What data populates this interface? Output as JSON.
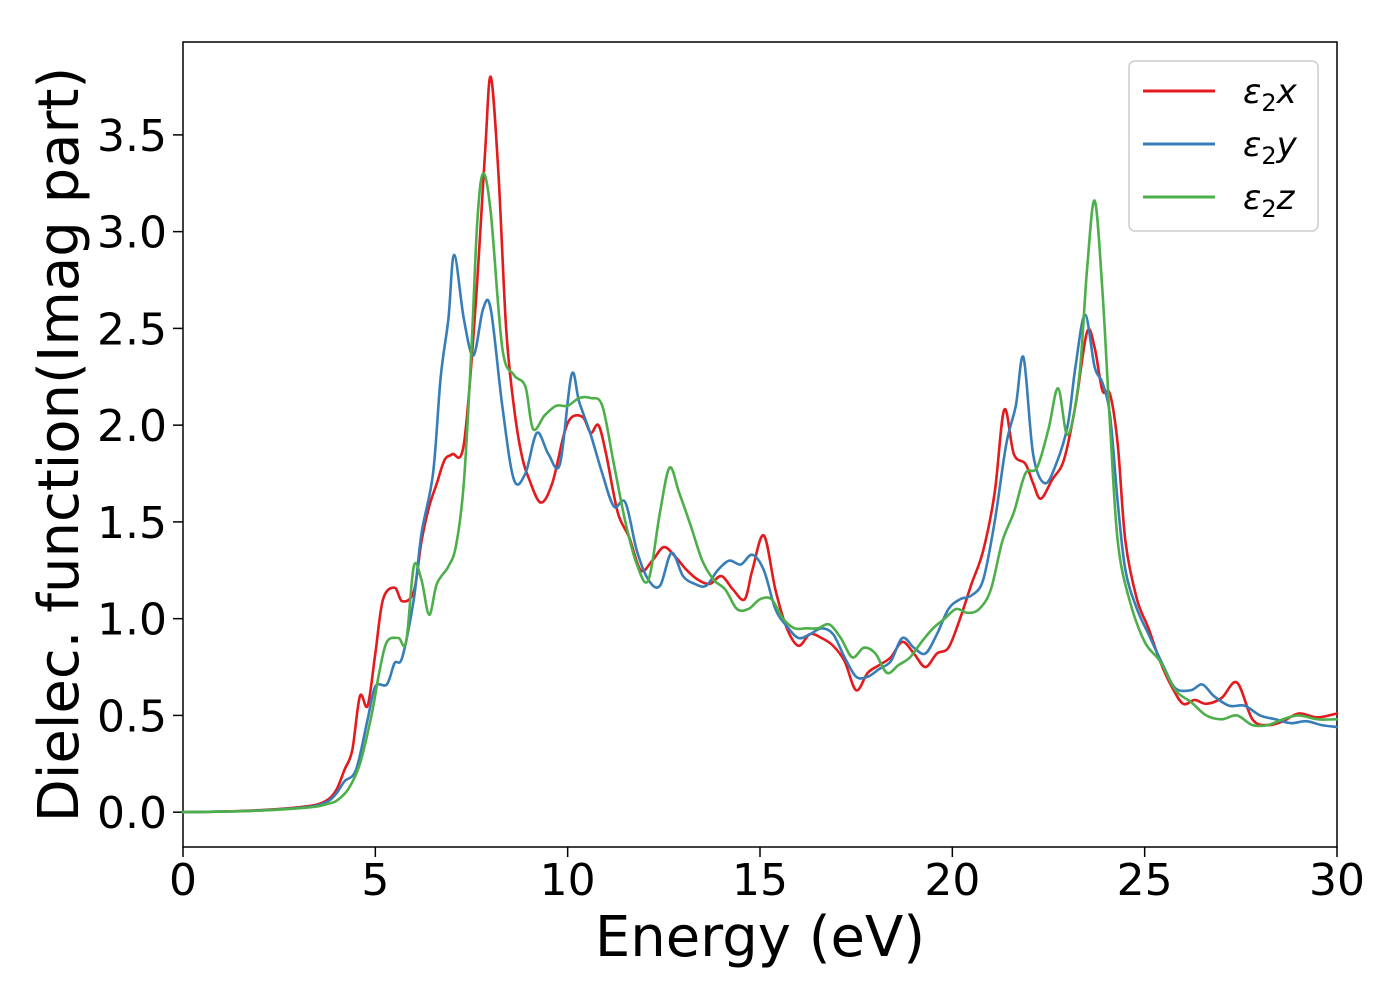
{
  "chart_data": {
    "type": "line",
    "title": "",
    "xlabel": "Energy (eV)",
    "ylabel": "Dielec. function(Imag part)",
    "xlim": [
      0,
      30
    ],
    "ylim": [
      -0.18,
      3.98
    ],
    "x_ticks": [
      0,
      5,
      10,
      15,
      20,
      25,
      30
    ],
    "y_ticks": [
      0.0,
      0.5,
      1.0,
      1.5,
      2.0,
      2.5,
      3.0,
      3.5
    ],
    "x_tick_labels": [
      "0",
      "5",
      "10",
      "15",
      "20",
      "25",
      "30"
    ],
    "y_tick_labels": [
      "0.0",
      "0.5",
      "1.0",
      "1.5",
      "2.0",
      "2.5",
      "3.0",
      "3.5"
    ],
    "grid": false,
    "legend_position": "upper right",
    "series": [
      {
        "name": "ε₂x",
        "name_main": "ε",
        "name_sub": "2",
        "name_var": "x",
        "color": "#e41a1c",
        "points": [
          [
            0,
            0.0
          ],
          [
            1,
            0.003
          ],
          [
            2,
            0.01
          ],
          [
            3,
            0.025
          ],
          [
            3.5,
            0.04
          ],
          [
            3.8,
            0.07
          ],
          [
            4.0,
            0.12
          ],
          [
            4.2,
            0.22
          ],
          [
            4.4,
            0.32
          ],
          [
            4.6,
            0.6
          ],
          [
            4.8,
            0.55
          ],
          [
            5.0,
            0.82
          ],
          [
            5.2,
            1.1
          ],
          [
            5.5,
            1.16
          ],
          [
            5.7,
            1.09
          ],
          [
            6.0,
            1.14
          ],
          [
            6.2,
            1.4
          ],
          [
            6.4,
            1.58
          ],
          [
            6.6,
            1.7
          ],
          [
            6.8,
            1.82
          ],
          [
            7.0,
            1.85
          ],
          [
            7.3,
            1.9
          ],
          [
            7.6,
            2.6
          ],
          [
            7.85,
            3.4
          ],
          [
            8.0,
            3.8
          ],
          [
            8.2,
            3.3
          ],
          [
            8.4,
            2.5
          ],
          [
            8.6,
            2.1
          ],
          [
            8.8,
            1.85
          ],
          [
            9.0,
            1.72
          ],
          [
            9.3,
            1.6
          ],
          [
            9.6,
            1.7
          ],
          [
            9.9,
            1.95
          ],
          [
            10.1,
            2.04
          ],
          [
            10.4,
            2.04
          ],
          [
            10.6,
            1.96
          ],
          [
            10.8,
            2.0
          ],
          [
            11.0,
            1.85
          ],
          [
            11.3,
            1.55
          ],
          [
            11.6,
            1.42
          ],
          [
            11.9,
            1.25
          ],
          [
            12.2,
            1.3
          ],
          [
            12.5,
            1.37
          ],
          [
            12.8,
            1.32
          ],
          [
            13.1,
            1.25
          ],
          [
            13.4,
            1.2
          ],
          [
            13.7,
            1.18
          ],
          [
            14.0,
            1.22
          ],
          [
            14.3,
            1.15
          ],
          [
            14.6,
            1.1
          ],
          [
            14.8,
            1.25
          ],
          [
            15.1,
            1.43
          ],
          [
            15.4,
            1.15
          ],
          [
            15.7,
            0.95
          ],
          [
            16.0,
            0.86
          ],
          [
            16.3,
            0.92
          ],
          [
            16.6,
            0.9
          ],
          [
            16.9,
            0.86
          ],
          [
            17.2,
            0.78
          ],
          [
            17.5,
            0.63
          ],
          [
            17.8,
            0.72
          ],
          [
            18.1,
            0.76
          ],
          [
            18.4,
            0.8
          ],
          [
            18.7,
            0.88
          ],
          [
            19.0,
            0.82
          ],
          [
            19.3,
            0.75
          ],
          [
            19.6,
            0.82
          ],
          [
            19.9,
            0.85
          ],
          [
            20.2,
            1.0
          ],
          [
            20.5,
            1.18
          ],
          [
            20.8,
            1.35
          ],
          [
            21.1,
            1.65
          ],
          [
            21.35,
            2.08
          ],
          [
            21.6,
            1.85
          ],
          [
            21.9,
            1.8
          ],
          [
            22.1,
            1.7
          ],
          [
            22.3,
            1.62
          ],
          [
            22.6,
            1.72
          ],
          [
            22.9,
            1.82
          ],
          [
            23.2,
            2.1
          ],
          [
            23.5,
            2.48
          ],
          [
            23.7,
            2.4
          ],
          [
            23.9,
            2.18
          ],
          [
            24.1,
            2.16
          ],
          [
            24.3,
            1.9
          ],
          [
            24.5,
            1.4
          ],
          [
            24.8,
            1.1
          ],
          [
            25.1,
            0.95
          ],
          [
            25.4,
            0.78
          ],
          [
            25.7,
            0.65
          ],
          [
            26.0,
            0.56
          ],
          [
            26.3,
            0.58
          ],
          [
            26.6,
            0.56
          ],
          [
            27.0,
            0.59
          ],
          [
            27.4,
            0.67
          ],
          [
            27.8,
            0.48
          ],
          [
            28.2,
            0.45
          ],
          [
            28.6,
            0.47
          ],
          [
            29.0,
            0.51
          ],
          [
            29.5,
            0.49
          ],
          [
            30.0,
            0.51
          ]
        ]
      },
      {
        "name": "ε₂y",
        "name_main": "ε",
        "name_sub": "2",
        "name_var": "y",
        "color": "#377eb8",
        "points": [
          [
            0,
            0.0
          ],
          [
            1,
            0.003
          ],
          [
            2,
            0.009
          ],
          [
            3,
            0.022
          ],
          [
            3.5,
            0.035
          ],
          [
            3.8,
            0.06
          ],
          [
            4.0,
            0.1
          ],
          [
            4.2,
            0.16
          ],
          [
            4.5,
            0.22
          ],
          [
            4.8,
            0.48
          ],
          [
            5.0,
            0.65
          ],
          [
            5.3,
            0.66
          ],
          [
            5.5,
            0.77
          ],
          [
            5.7,
            0.8
          ],
          [
            6.0,
            1.1
          ],
          [
            6.2,
            1.44
          ],
          [
            6.5,
            1.75
          ],
          [
            6.7,
            2.25
          ],
          [
            6.9,
            2.55
          ],
          [
            7.05,
            2.88
          ],
          [
            7.3,
            2.55
          ],
          [
            7.55,
            2.36
          ],
          [
            7.8,
            2.6
          ],
          [
            8.0,
            2.6
          ],
          [
            8.3,
            2.1
          ],
          [
            8.6,
            1.72
          ],
          [
            8.9,
            1.75
          ],
          [
            9.2,
            1.96
          ],
          [
            9.5,
            1.85
          ],
          [
            9.8,
            1.8
          ],
          [
            10.1,
            2.26
          ],
          [
            10.3,
            2.12
          ],
          [
            10.6,
            1.95
          ],
          [
            10.9,
            1.75
          ],
          [
            11.2,
            1.58
          ],
          [
            11.5,
            1.6
          ],
          [
            11.8,
            1.35
          ],
          [
            12.1,
            1.2
          ],
          [
            12.4,
            1.17
          ],
          [
            12.7,
            1.34
          ],
          [
            13.0,
            1.22
          ],
          [
            13.3,
            1.18
          ],
          [
            13.6,
            1.17
          ],
          [
            13.9,
            1.25
          ],
          [
            14.2,
            1.3
          ],
          [
            14.5,
            1.28
          ],
          [
            14.8,
            1.33
          ],
          [
            15.1,
            1.25
          ],
          [
            15.4,
            1.05
          ],
          [
            15.7,
            0.96
          ],
          [
            16.0,
            0.9
          ],
          [
            16.3,
            0.92
          ],
          [
            16.6,
            0.95
          ],
          [
            16.9,
            0.92
          ],
          [
            17.2,
            0.8
          ],
          [
            17.5,
            0.7
          ],
          [
            17.8,
            0.7
          ],
          [
            18.1,
            0.74
          ],
          [
            18.4,
            0.78
          ],
          [
            18.7,
            0.9
          ],
          [
            19.0,
            0.85
          ],
          [
            19.3,
            0.82
          ],
          [
            19.6,
            0.92
          ],
          [
            19.9,
            1.05
          ],
          [
            20.2,
            1.1
          ],
          [
            20.5,
            1.12
          ],
          [
            20.8,
            1.2
          ],
          [
            21.1,
            1.5
          ],
          [
            21.4,
            1.9
          ],
          [
            21.65,
            2.1
          ],
          [
            21.85,
            2.35
          ],
          [
            22.1,
            1.85
          ],
          [
            22.4,
            1.7
          ],
          [
            22.7,
            1.8
          ],
          [
            23.0,
            2.0
          ],
          [
            23.2,
            2.3
          ],
          [
            23.45,
            2.57
          ],
          [
            23.7,
            2.3
          ],
          [
            23.9,
            2.22
          ],
          [
            24.1,
            2.05
          ],
          [
            24.3,
            1.6
          ],
          [
            24.5,
            1.25
          ],
          [
            24.8,
            1.05
          ],
          [
            25.1,
            0.92
          ],
          [
            25.5,
            0.75
          ],
          [
            25.8,
            0.64
          ],
          [
            26.2,
            0.63
          ],
          [
            26.5,
            0.66
          ],
          [
            26.8,
            0.6
          ],
          [
            27.2,
            0.55
          ],
          [
            27.6,
            0.55
          ],
          [
            28.0,
            0.5
          ],
          [
            28.4,
            0.48
          ],
          [
            28.8,
            0.46
          ],
          [
            29.2,
            0.47
          ],
          [
            29.6,
            0.45
          ],
          [
            30.0,
            0.44
          ]
        ]
      },
      {
        "name": "ε₂z",
        "name_main": "ε",
        "name_sub": "2",
        "name_var": "z",
        "color": "#4daf4a",
        "points": [
          [
            0,
            0.0
          ],
          [
            1,
            0.003
          ],
          [
            2,
            0.008
          ],
          [
            3,
            0.02
          ],
          [
            3.5,
            0.03
          ],
          [
            3.8,
            0.045
          ],
          [
            4.0,
            0.06
          ],
          [
            4.3,
            0.12
          ],
          [
            4.6,
            0.25
          ],
          [
            4.9,
            0.5
          ],
          [
            5.1,
            0.72
          ],
          [
            5.3,
            0.88
          ],
          [
            5.6,
            0.9
          ],
          [
            5.8,
            0.88
          ],
          [
            6.0,
            1.27
          ],
          [
            6.2,
            1.2
          ],
          [
            6.4,
            1.02
          ],
          [
            6.6,
            1.18
          ],
          [
            6.9,
            1.27
          ],
          [
            7.1,
            1.38
          ],
          [
            7.3,
            1.7
          ],
          [
            7.5,
            2.4
          ],
          [
            7.65,
            3.05
          ],
          [
            7.8,
            3.3
          ],
          [
            8.0,
            3.1
          ],
          [
            8.3,
            2.4
          ],
          [
            8.6,
            2.26
          ],
          [
            8.9,
            2.2
          ],
          [
            9.1,
            1.98
          ],
          [
            9.4,
            2.05
          ],
          [
            9.7,
            2.1
          ],
          [
            10.0,
            2.1
          ],
          [
            10.3,
            2.14
          ],
          [
            10.6,
            2.14
          ],
          [
            10.9,
            2.1
          ],
          [
            11.2,
            1.8
          ],
          [
            11.5,
            1.5
          ],
          [
            11.8,
            1.28
          ],
          [
            12.1,
            1.2
          ],
          [
            12.4,
            1.55
          ],
          [
            12.65,
            1.78
          ],
          [
            12.9,
            1.65
          ],
          [
            13.2,
            1.48
          ],
          [
            13.5,
            1.3
          ],
          [
            13.8,
            1.2
          ],
          [
            14.1,
            1.15
          ],
          [
            14.4,
            1.05
          ],
          [
            14.7,
            1.05
          ],
          [
            15.0,
            1.1
          ],
          [
            15.3,
            1.1
          ],
          [
            15.6,
            1.0
          ],
          [
            15.9,
            0.95
          ],
          [
            16.2,
            0.95
          ],
          [
            16.5,
            0.95
          ],
          [
            16.8,
            0.97
          ],
          [
            17.1,
            0.9
          ],
          [
            17.4,
            0.8
          ],
          [
            17.7,
            0.85
          ],
          [
            18.0,
            0.82
          ],
          [
            18.3,
            0.72
          ],
          [
            18.6,
            0.76
          ],
          [
            18.9,
            0.8
          ],
          [
            19.2,
            0.88
          ],
          [
            19.5,
            0.95
          ],
          [
            19.8,
            1.0
          ],
          [
            20.1,
            1.05
          ],
          [
            20.4,
            1.03
          ],
          [
            20.7,
            1.05
          ],
          [
            21.0,
            1.15
          ],
          [
            21.3,
            1.4
          ],
          [
            21.6,
            1.55
          ],
          [
            21.9,
            1.75
          ],
          [
            22.2,
            1.78
          ],
          [
            22.5,
            1.98
          ],
          [
            22.75,
            2.19
          ],
          [
            23.0,
            1.95
          ],
          [
            23.3,
            2.25
          ],
          [
            23.5,
            2.8
          ],
          [
            23.7,
            3.16
          ],
          [
            23.9,
            2.7
          ],
          [
            24.1,
            2.0
          ],
          [
            24.3,
            1.4
          ],
          [
            24.6,
            1.1
          ],
          [
            25.0,
            0.88
          ],
          [
            25.4,
            0.78
          ],
          [
            25.8,
            0.63
          ],
          [
            26.2,
            0.57
          ],
          [
            26.6,
            0.5
          ],
          [
            27.0,
            0.48
          ],
          [
            27.4,
            0.5
          ],
          [
            27.8,
            0.45
          ],
          [
            28.2,
            0.45
          ],
          [
            28.6,
            0.48
          ],
          [
            29.0,
            0.5
          ],
          [
            29.5,
            0.48
          ],
          [
            30.0,
            0.48
          ]
        ]
      }
    ]
  }
}
